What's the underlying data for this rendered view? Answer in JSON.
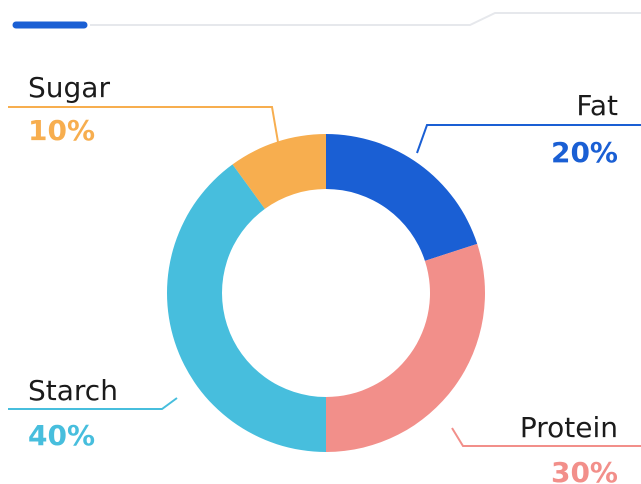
{
  "chart_data": {
    "type": "pie",
    "donut": true,
    "categories": [
      "Fat",
      "Protein",
      "Starch",
      "Sugar"
    ],
    "values": [
      20,
      30,
      40,
      10
    ],
    "value_labels": [
      "20%",
      "30%",
      "40%",
      "10%"
    ],
    "colors": [
      "#1a5fd4",
      "#f28f8a",
      "#47bedd",
      "#f7ae4f"
    ]
  }
}
